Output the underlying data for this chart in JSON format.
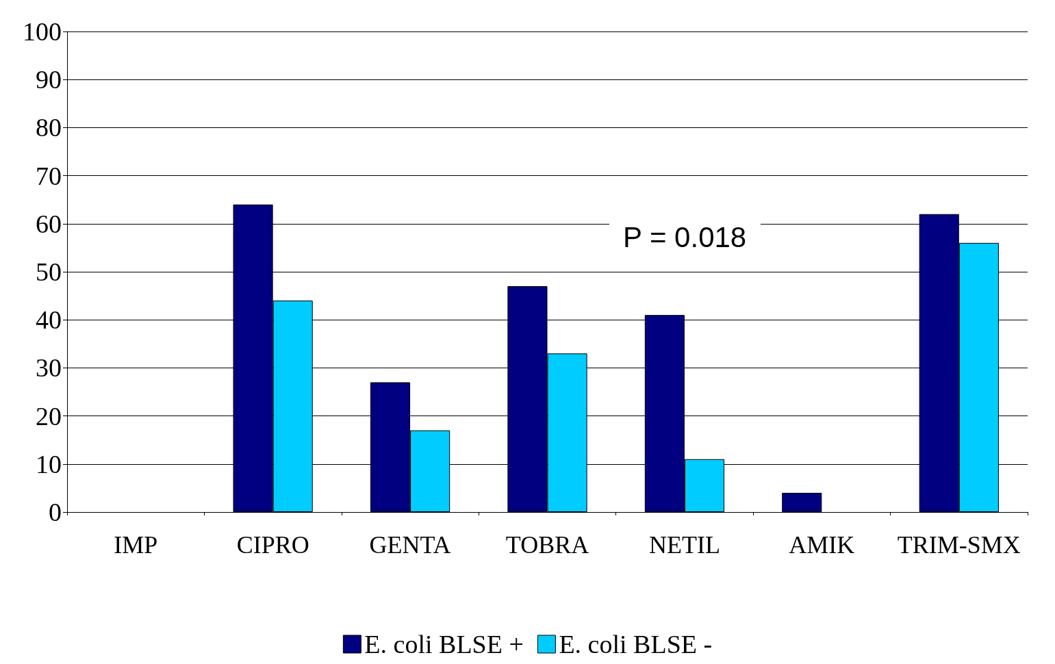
{
  "chart_data": {
    "type": "bar",
    "categories": [
      "IMP",
      "CIPRO",
      "GENTA",
      "TOBRA",
      "NETIL",
      "AMIK",
      "TRIM-SMX"
    ],
    "series": [
      {
        "name": "E. coli BLSE +",
        "color": "#000080",
        "values": [
          0,
          64,
          27,
          47,
          41,
          4,
          62
        ]
      },
      {
        "name": "E. coli BLSE -",
        "color": "#00ccff",
        "values": [
          0,
          44,
          17,
          33,
          11,
          0,
          56
        ]
      }
    ],
    "ylim": [
      0,
      100
    ],
    "yticks": [
      0,
      10,
      20,
      30,
      40,
      50,
      60,
      70,
      80,
      90,
      100
    ],
    "grid": "y",
    "legend": "bottom",
    "annotations": [
      "P = 0.018"
    ]
  }
}
